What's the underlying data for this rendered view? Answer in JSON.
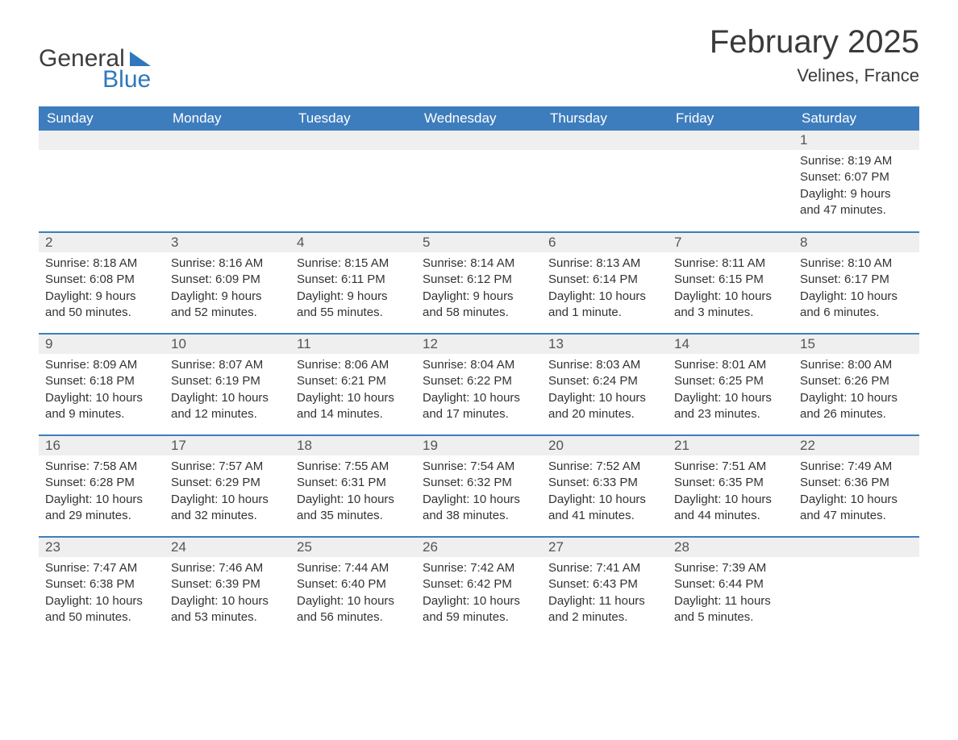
{
  "logo": {
    "text1": "General",
    "text2": "Blue"
  },
  "colors": {
    "header_bg": "#3e7dbd",
    "header_fg": "#ffffff",
    "week_border": "#3e7dbd",
    "daynum_bg": "#efefef",
    "daynum_fg": "#555555",
    "body_fg": "#333333",
    "logo_blue": "#2f78bd",
    "logo_gray": "#3d3d3d",
    "page_bg": "#ffffff"
  },
  "title": "February 2025",
  "location": "Velines, France",
  "weekdays": [
    "Sunday",
    "Monday",
    "Tuesday",
    "Wednesday",
    "Thursday",
    "Friday",
    "Saturday"
  ],
  "weeks": [
    [
      null,
      null,
      null,
      null,
      null,
      null,
      {
        "n": "1",
        "sunrise": "8:19 AM",
        "sunset": "6:07 PM",
        "daylight": "9 hours and 47 minutes."
      }
    ],
    [
      {
        "n": "2",
        "sunrise": "8:18 AM",
        "sunset": "6:08 PM",
        "daylight": "9 hours and 50 minutes."
      },
      {
        "n": "3",
        "sunrise": "8:16 AM",
        "sunset": "6:09 PM",
        "daylight": "9 hours and 52 minutes."
      },
      {
        "n": "4",
        "sunrise": "8:15 AM",
        "sunset": "6:11 PM",
        "daylight": "9 hours and 55 minutes."
      },
      {
        "n": "5",
        "sunrise": "8:14 AM",
        "sunset": "6:12 PM",
        "daylight": "9 hours and 58 minutes."
      },
      {
        "n": "6",
        "sunrise": "8:13 AM",
        "sunset": "6:14 PM",
        "daylight": "10 hours and 1 minute."
      },
      {
        "n": "7",
        "sunrise": "8:11 AM",
        "sunset": "6:15 PM",
        "daylight": "10 hours and 3 minutes."
      },
      {
        "n": "8",
        "sunrise": "8:10 AM",
        "sunset": "6:17 PM",
        "daylight": "10 hours and 6 minutes."
      }
    ],
    [
      {
        "n": "9",
        "sunrise": "8:09 AM",
        "sunset": "6:18 PM",
        "daylight": "10 hours and 9 minutes."
      },
      {
        "n": "10",
        "sunrise": "8:07 AM",
        "sunset": "6:19 PM",
        "daylight": "10 hours and 12 minutes."
      },
      {
        "n": "11",
        "sunrise": "8:06 AM",
        "sunset": "6:21 PM",
        "daylight": "10 hours and 14 minutes."
      },
      {
        "n": "12",
        "sunrise": "8:04 AM",
        "sunset": "6:22 PM",
        "daylight": "10 hours and 17 minutes."
      },
      {
        "n": "13",
        "sunrise": "8:03 AM",
        "sunset": "6:24 PM",
        "daylight": "10 hours and 20 minutes."
      },
      {
        "n": "14",
        "sunrise": "8:01 AM",
        "sunset": "6:25 PM",
        "daylight": "10 hours and 23 minutes."
      },
      {
        "n": "15",
        "sunrise": "8:00 AM",
        "sunset": "6:26 PM",
        "daylight": "10 hours and 26 minutes."
      }
    ],
    [
      {
        "n": "16",
        "sunrise": "7:58 AM",
        "sunset": "6:28 PM",
        "daylight": "10 hours and 29 minutes."
      },
      {
        "n": "17",
        "sunrise": "7:57 AM",
        "sunset": "6:29 PM",
        "daylight": "10 hours and 32 minutes."
      },
      {
        "n": "18",
        "sunrise": "7:55 AM",
        "sunset": "6:31 PM",
        "daylight": "10 hours and 35 minutes."
      },
      {
        "n": "19",
        "sunrise": "7:54 AM",
        "sunset": "6:32 PM",
        "daylight": "10 hours and 38 minutes."
      },
      {
        "n": "20",
        "sunrise": "7:52 AM",
        "sunset": "6:33 PM",
        "daylight": "10 hours and 41 minutes."
      },
      {
        "n": "21",
        "sunrise": "7:51 AM",
        "sunset": "6:35 PM",
        "daylight": "10 hours and 44 minutes."
      },
      {
        "n": "22",
        "sunrise": "7:49 AM",
        "sunset": "6:36 PM",
        "daylight": "10 hours and 47 minutes."
      }
    ],
    [
      {
        "n": "23",
        "sunrise": "7:47 AM",
        "sunset": "6:38 PM",
        "daylight": "10 hours and 50 minutes."
      },
      {
        "n": "24",
        "sunrise": "7:46 AM",
        "sunset": "6:39 PM",
        "daylight": "10 hours and 53 minutes."
      },
      {
        "n": "25",
        "sunrise": "7:44 AM",
        "sunset": "6:40 PM",
        "daylight": "10 hours and 56 minutes."
      },
      {
        "n": "26",
        "sunrise": "7:42 AM",
        "sunset": "6:42 PM",
        "daylight": "10 hours and 59 minutes."
      },
      {
        "n": "27",
        "sunrise": "7:41 AM",
        "sunset": "6:43 PM",
        "daylight": "11 hours and 2 minutes."
      },
      {
        "n": "28",
        "sunrise": "7:39 AM",
        "sunset": "6:44 PM",
        "daylight": "11 hours and 5 minutes."
      },
      null
    ]
  ],
  "labels": {
    "sunrise": "Sunrise: ",
    "sunset": "Sunset: ",
    "daylight": "Daylight: "
  }
}
